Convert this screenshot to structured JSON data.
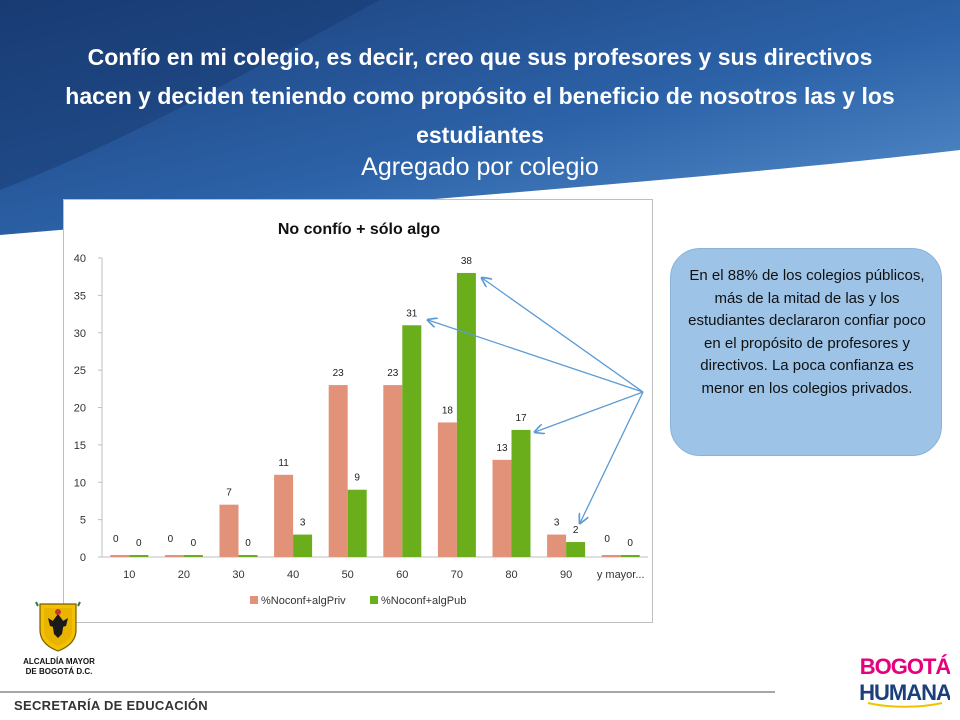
{
  "slide": {
    "title": "Confío en mi colegio, es decir, creo que sus profesores y sus directivos hacen y deciden teniendo como propósito el beneficio de nosotros las y los estudiantes",
    "subtitle": "Agregado por colegio",
    "callout_text": "En el 88% de los colegios públicos, más de la mitad de las y los estudiantes declararon confiar poco en el propósito de profesores y directivos.  La poca confianza es menor en los colegios privados.",
    "footer": "SECRETARÍA DE EDUCACIÓN",
    "crest_label_line1": "ALCALDÍA MAYOR",
    "crest_label_line2": "DE BOGOTÁ D.C.",
    "logo_line1": "BOGOTÁ",
    "logo_line2": "HUMANA"
  },
  "colors": {
    "header_dark": "#1d4a8a",
    "header_light": "#4f86c6",
    "private": "#e3927a",
    "public": "#6aae1c",
    "callout": "#9dc3e6",
    "arrow": "#5b9bd5"
  },
  "chart_data": {
    "type": "bar",
    "title": "No confío + sólo algo",
    "categories": [
      "10",
      "20",
      "30",
      "40",
      "50",
      "60",
      "70",
      "80",
      "90",
      "y mayor..."
    ],
    "series": [
      {
        "name": "%Noconf+algPriv",
        "values": [
          0,
          0,
          7,
          11,
          23,
          23,
          18,
          13,
          3,
          0
        ]
      },
      {
        "name": "%Noconf+algPub",
        "values": [
          0,
          0,
          0,
          3,
          9,
          31,
          38,
          17,
          2,
          0
        ]
      }
    ],
    "ylim": [
      0,
      40
    ],
    "yticks": [
      0,
      5,
      10,
      15,
      20,
      25,
      30,
      35,
      40
    ],
    "xlabel": "",
    "ylabel": "",
    "grid": false,
    "legend": "bottom"
  }
}
